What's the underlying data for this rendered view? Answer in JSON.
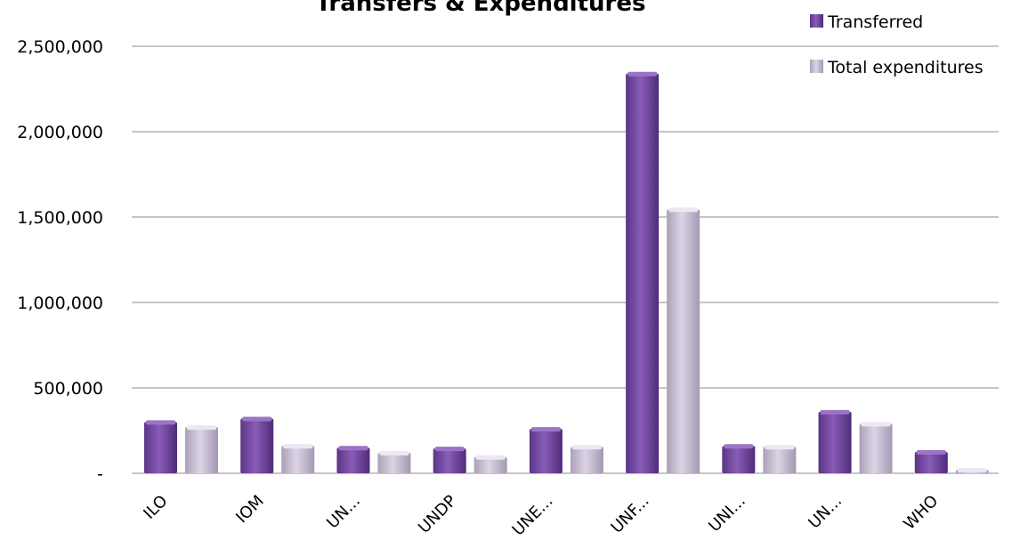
{
  "chart_data": {
    "type": "bar",
    "title": "Transfers & Expenditures",
    "xlabel": "",
    "ylabel": "",
    "ylim": [
      0,
      2500000
    ],
    "yticks": [
      {
        "value": 0,
        "label": "-"
      },
      {
        "value": 500000,
        "label": "500,000"
      },
      {
        "value": 1000000,
        "label": "1,000,000"
      },
      {
        "value": 1500000,
        "label": "1,500,000"
      },
      {
        "value": 2000000,
        "label": "2,000,000"
      },
      {
        "value": 2500000,
        "label": "2,500,000"
      }
    ],
    "categories": [
      "ILO",
      "IOM",
      "UN...",
      "UNDP",
      "UNE...",
      "UNF...",
      "UNI...",
      "UN...",
      "WHO"
    ],
    "series": [
      {
        "name": "Transferred",
        "color": "#7b4fa6",
        "values": [
          300000,
          320000,
          150000,
          145000,
          260000,
          2340000,
          160000,
          360000,
          125000
        ]
      },
      {
        "name": "Total expenditures",
        "color": "#c9bfd6",
        "values": [
          270000,
          160000,
          120000,
          95000,
          155000,
          1545000,
          155000,
          290000,
          20000
        ]
      }
    ],
    "grid": true,
    "legend": "top-right"
  }
}
